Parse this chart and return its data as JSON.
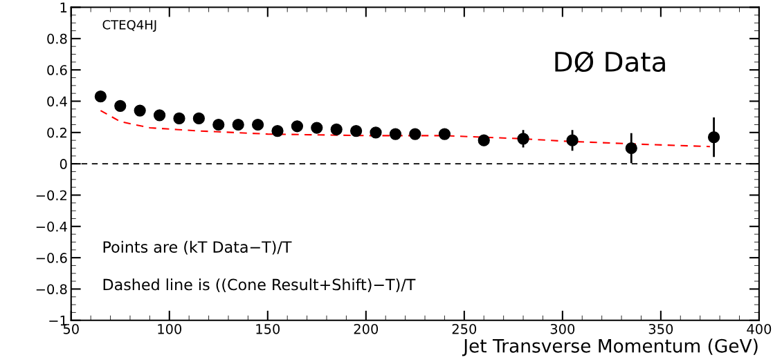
{
  "chart_data": {
    "type": "scatter",
    "xlabel": "Jet Transverse Momentum (GeV)",
    "x": [
      65,
      75,
      85,
      95,
      105,
      115,
      125,
      135,
      145,
      155,
      165,
      175,
      185,
      195,
      205,
      215,
      225,
      240,
      260,
      280,
      305,
      335,
      377
    ],
    "series": [
      {
        "color": "#000000",
        "marker": "circle",
        "values": [
          0.43,
          0.37,
          0.34,
          0.31,
          0.29,
          0.29,
          0.25,
          0.25,
          0.25,
          0.21,
          0.24,
          0.23,
          0.22,
          0.21,
          0.2,
          0.19,
          0.19,
          0.19,
          0.15,
          0.16,
          0.15,
          0.1,
          0.17
        ],
        "errors": [
          null,
          null,
          null,
          null,
          null,
          null,
          null,
          null,
          null,
          null,
          null,
          null,
          null,
          null,
          null,
          null,
          null,
          null,
          0.03,
          0.05,
          0.06,
          0.09,
          0.12
        ]
      },
      {
        "type": "line",
        "color": "#ff0000",
        "line_style": "dashed",
        "x": [
          65,
          75,
          90,
          115,
          150,
          200,
          240,
          280,
          300,
          340,
          375
        ],
        "values": [
          0.34,
          0.27,
          0.23,
          0.21,
          0.19,
          0.18,
          0.18,
          0.16,
          0.145,
          0.125,
          0.11
        ]
      }
    ],
    "xlim": [
      50,
      400
    ],
    "xticks": [
      50,
      100,
      150,
      200,
      250,
      300,
      350,
      400
    ],
    "ylim": [
      -1,
      1
    ],
    "yticks": [
      {
        "value": -1,
        "label": "−1"
      },
      {
        "value": -0.8,
        "label": "−0.8"
      },
      {
        "value": -0.6,
        "label": "−0.6"
      },
      {
        "value": -0.4,
        "label": "−0.4"
      },
      {
        "value": -0.2,
        "label": "−0.2"
      },
      0,
      0.2,
      0.4,
      0.6,
      0.8,
      1
    ],
    "ref_lines": [
      {
        "axis": "y",
        "value": 0,
        "color": "#000000",
        "line_style": "dashed"
      }
    ],
    "annotations": [
      "CTEQ4HJ",
      "DØ Data",
      "Points are (kT Data−T)/T",
      "Dashed line is ((Cone Result+Shift)−T)/T"
    ],
    "grid": false,
    "legend": false
  }
}
